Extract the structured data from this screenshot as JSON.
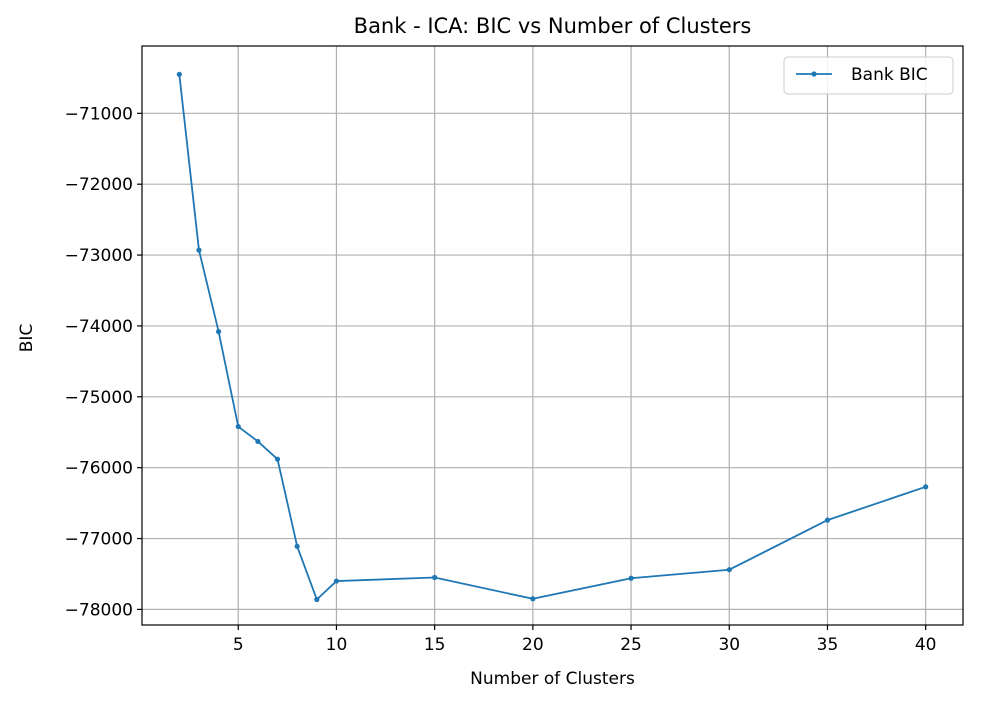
{
  "chart_data": {
    "type": "line",
    "title": "Bank - ICA: BIC vs Number of Clusters",
    "xlabel": "Number of Clusters",
    "ylabel": "BIC",
    "x_ticks": [
      5,
      10,
      15,
      20,
      25,
      30,
      35,
      40
    ],
    "y_ticks": [
      -71000,
      -72000,
      -73000,
      -74000,
      -75000,
      -76000,
      -77000,
      -78000
    ],
    "y_tick_labels": [
      "−71000",
      "−72000",
      "−73000",
      "−74000",
      "−75000",
      "−76000",
      "−77000",
      "−78000"
    ],
    "xlim": [
      0.1,
      41.9
    ],
    "ylim": [
      -78220,
      -70050
    ],
    "grid": true,
    "legend_position": "top-right",
    "series": [
      {
        "name": "Bank BIC",
        "color": "#1f77b4",
        "marker": "dot",
        "x": [
          2,
          3,
          4,
          5,
          6,
          7,
          8,
          9,
          10,
          15,
          20,
          25,
          30,
          35,
          40
        ],
        "y": [
          -70450,
          -72930,
          -74080,
          -75420,
          -75630,
          -75880,
          -77110,
          -77860,
          -77600,
          -77550,
          -77850,
          -77560,
          -77440,
          -76740,
          -76270
        ]
      }
    ]
  }
}
